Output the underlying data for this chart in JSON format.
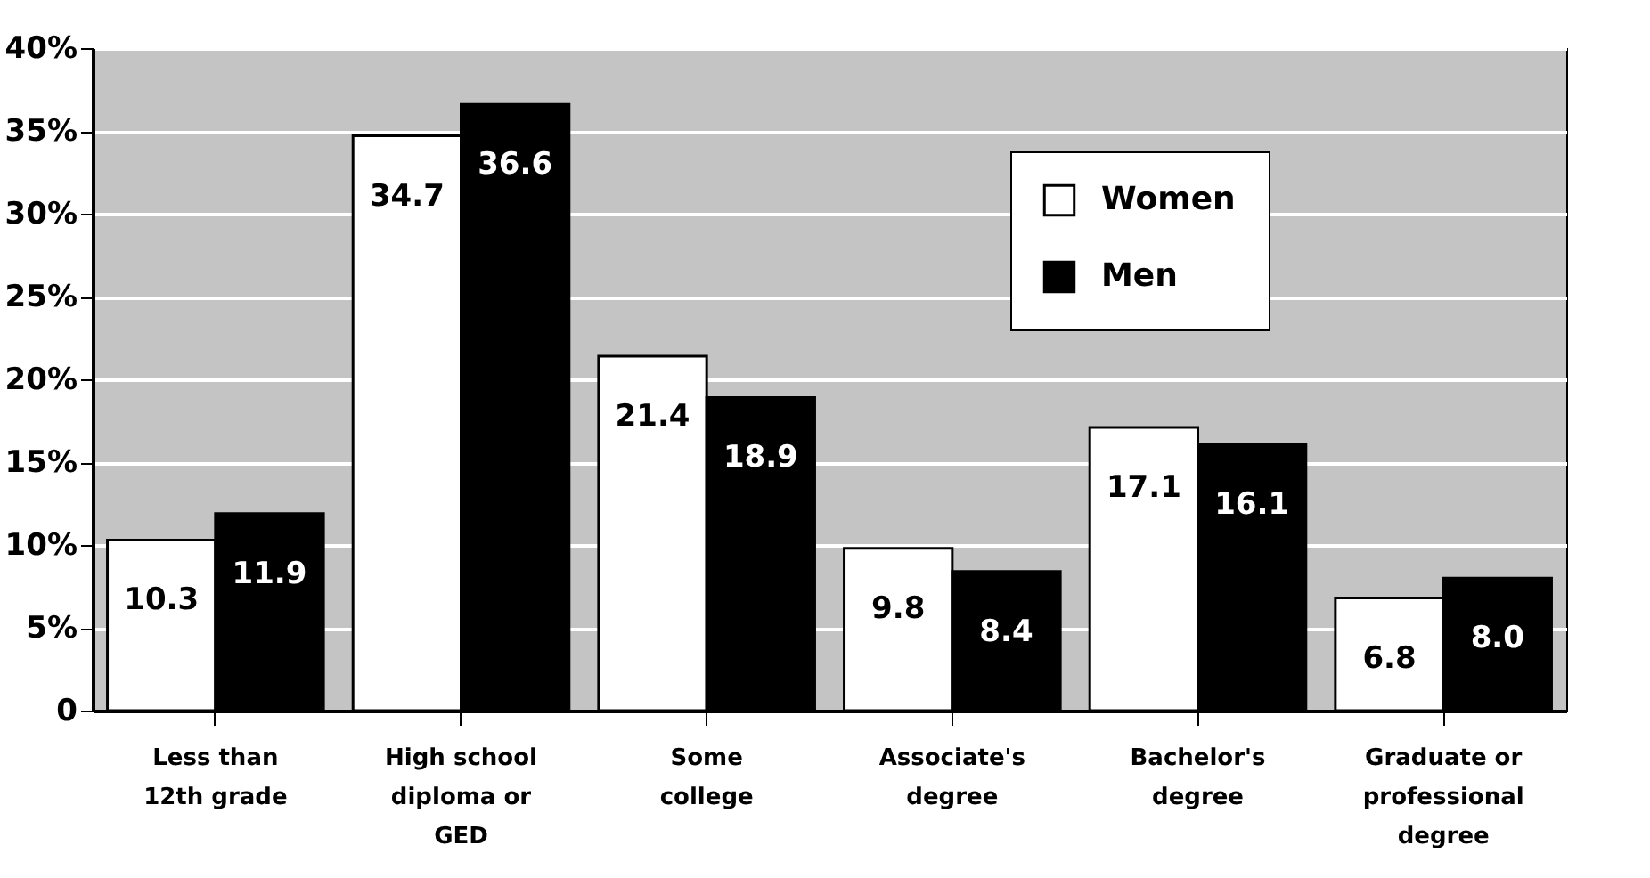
{
  "chart_data": {
    "type": "bar",
    "categories": [
      "Less than 12th grade",
      "High school diploma or GED",
      "Some college",
      "Associate's degree",
      "Bachelor's degree",
      "Graduate or professional degree"
    ],
    "series": [
      {
        "name": "Women",
        "color": "#ffffff",
        "values": [
          10.3,
          34.7,
          21.4,
          9.8,
          17.1,
          6.8
        ],
        "value_labels": [
          "10.3",
          "34.7",
          "21.4",
          "9.8",
          "17.1",
          "6.8"
        ]
      },
      {
        "name": "Men",
        "color": "#000000",
        "values": [
          11.9,
          36.6,
          18.9,
          8.4,
          16.1,
          8.0
        ],
        "value_labels": [
          "11.9",
          "36.6",
          "18.9",
          "8.4",
          "16.1",
          "8.0"
        ]
      }
    ],
    "ylim": [
      0,
      40
    ],
    "yticks": [
      0,
      {
        "value": 5,
        "label": "5%"
      },
      {
        "value": 10,
        "label": "10%"
      },
      {
        "value": 15,
        "label": "15%"
      },
      {
        "value": 20,
        "label": "20%"
      },
      {
        "value": 25,
        "label": "25%"
      },
      {
        "value": 30,
        "label": "30%"
      },
      {
        "value": 35,
        "label": "35%"
      },
      {
        "value": 40,
        "label": "40%"
      }
    ],
    "grid": "y",
    "legend": "top right"
  }
}
